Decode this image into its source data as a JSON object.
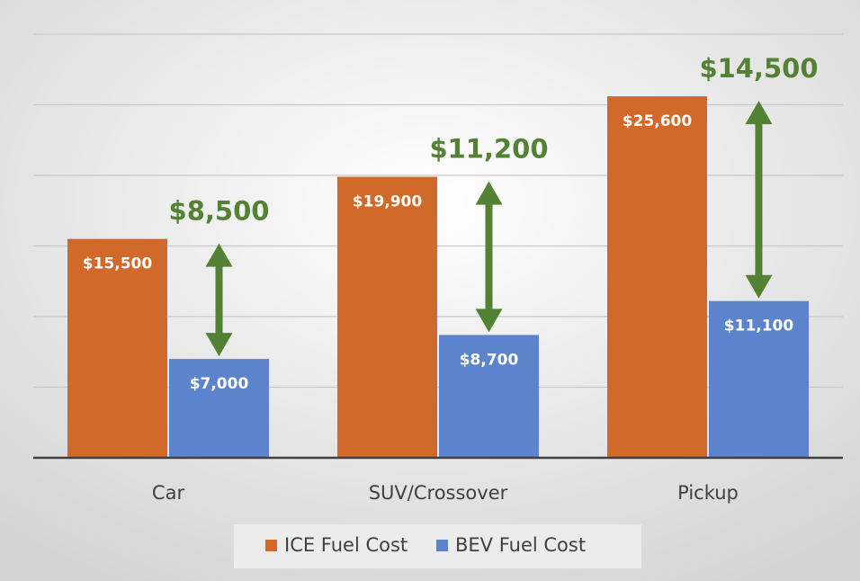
{
  "chart_data": {
    "type": "bar",
    "categories": [
      "Car",
      "SUV/Crossover",
      "Pickup"
    ],
    "series": [
      {
        "name": "ICE Fuel Cost",
        "color": "#d0692a",
        "values": [
          15500,
          19900,
          25600
        ],
        "value_labels": [
          "$15,500",
          "$19,900",
          "$25,600"
        ]
      },
      {
        "name": "BEV Fuel Cost",
        "color": "#5b84cc",
        "values": [
          7000,
          8700,
          11100
        ],
        "value_labels": [
          "$7,000",
          "$8,700",
          "$11,100"
        ]
      }
    ],
    "differences": {
      "color": "#548235",
      "values": [
        8500,
        11200,
        14500
      ],
      "value_labels": [
        "$8,500",
        "$11,200",
        "$14,500"
      ]
    },
    "ylim": [
      0,
      30000
    ],
    "yticks": [
      0,
      5000,
      10000,
      15000,
      20000,
      25000,
      30000
    ],
    "grid": true,
    "legend": "bottom"
  }
}
